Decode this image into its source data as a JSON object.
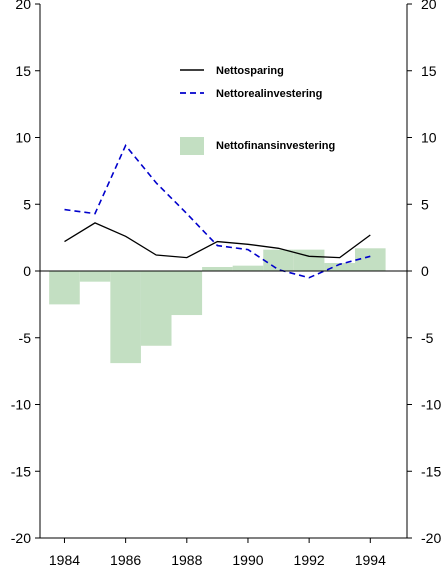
{
  "chart_data": {
    "type": "bar+line",
    "xlim": [
      1983.2,
      1995.2
    ],
    "ylim": [
      -20,
      20
    ],
    "y_ticks": [
      20,
      15,
      10,
      5,
      0,
      -5,
      -10,
      -15,
      -20
    ],
    "x_ticks": [
      1984,
      1986,
      1988,
      1990,
      1992,
      1994
    ],
    "grid": false,
    "legend_position": "top-center",
    "bars": {
      "name": "Nettofinansinvestering",
      "color": "#c3dfc2",
      "x": [
        1984,
        1985,
        1986,
        1987,
        1988,
        1989,
        1990,
        1991,
        1992,
        1993,
        1994
      ],
      "values": [
        -2.5,
        -0.8,
        -6.9,
        -5.6,
        -3.3,
        0.3,
        0.4,
        1.6,
        1.6,
        0.6,
        1.7
      ]
    },
    "lines": [
      {
        "name": "Nettosparing",
        "color": "#000000",
        "style": "solid",
        "x": [
          1984,
          1985,
          1986,
          1987,
          1988,
          1989,
          1990,
          1991,
          1992,
          1993,
          1994
        ],
        "values": [
          2.2,
          3.6,
          2.6,
          1.2,
          1.0,
          2.2,
          2.0,
          1.7,
          1.1,
          1.0,
          2.7
        ]
      },
      {
        "name": "Nettorealinvestering",
        "color": "#0000cc",
        "style": "dashed",
        "x": [
          1984,
          1985,
          1986,
          1987,
          1988,
          1989,
          1990,
          1991,
          1992,
          1993,
          1994
        ],
        "values": [
          4.6,
          4.3,
          9.4,
          6.6,
          4.3,
          1.9,
          1.6,
          0.1,
          -0.5,
          0.5,
          1.1
        ]
      }
    ]
  }
}
